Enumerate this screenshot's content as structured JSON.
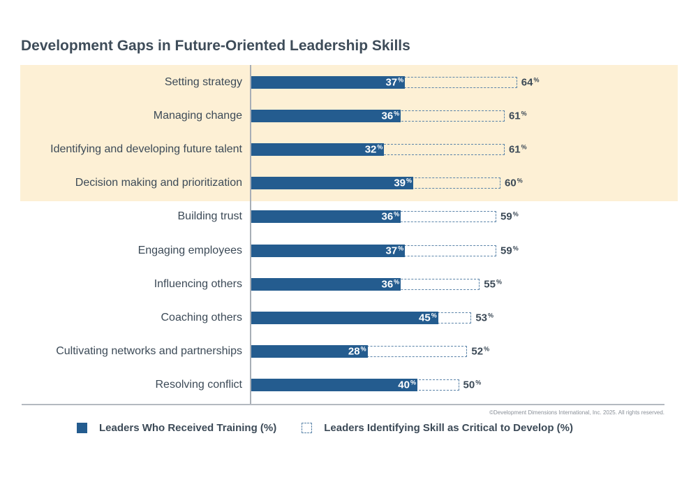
{
  "chart_data": {
    "type": "bar",
    "orientation": "horizontal",
    "title": "Development Gaps in Future-Oriented Leadership Skills",
    "categories": [
      "Setting strategy",
      "Managing change",
      "Identifying and developing future talent",
      "Decision making and prioritization",
      "Building trust",
      "Engaging employees",
      "Influencing others",
      "Coaching others",
      "Cultivating networks and partnerships",
      "Resolving conflict"
    ],
    "series": [
      {
        "name": "Leaders Who Received Training (%)",
        "values": [
          37,
          36,
          32,
          39,
          36,
          37,
          36,
          45,
          28,
          40
        ]
      },
      {
        "name": "Leaders Identifying Skill as Critical to Develop (%)",
        "values": [
          64,
          61,
          61,
          60,
          59,
          59,
          55,
          53,
          52,
          50
        ]
      }
    ],
    "value_suffix": "%",
    "highlighted_categories": [
      0,
      1,
      2,
      3
    ],
    "xlim": [
      0,
      100
    ],
    "legend_position": "bottom",
    "grid": false
  },
  "colors": {
    "filled_bar": "#245c8f",
    "outline_bar": "#5b84a9",
    "highlight_band": "#fdf0d5"
  },
  "copyright": "©Development Dimensions International, Inc. 2025. All rights reserved."
}
